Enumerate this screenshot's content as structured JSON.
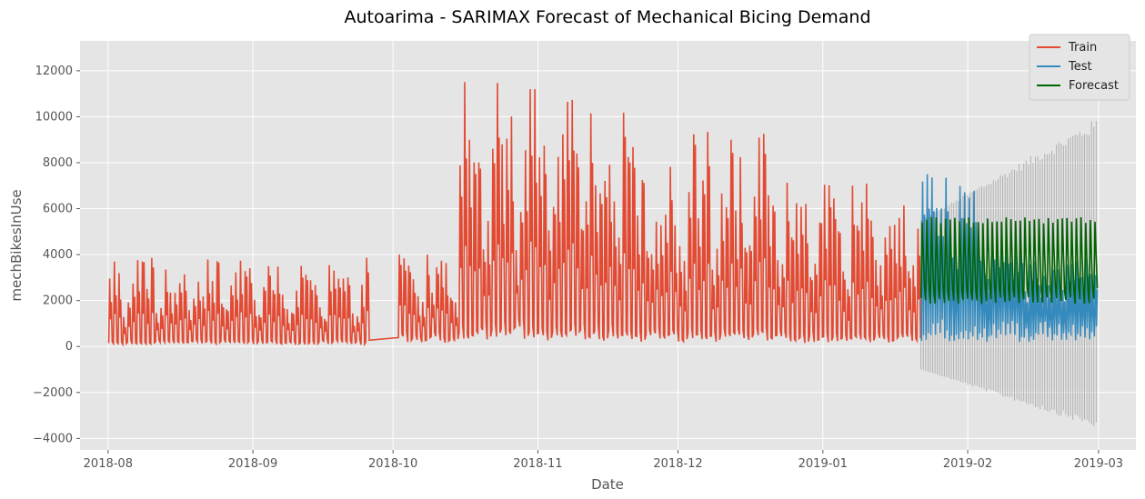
{
  "chart_data": {
    "type": "line",
    "title": "Autoarima - SARIMAX Forecast of Mechanical Bicing Demand",
    "xlabel": "Date",
    "ylabel": "mechBikesInUse",
    "x_tick_labels": [
      "2018-08",
      "2018-09",
      "2018-10",
      "2018-11",
      "2018-12",
      "2019-01",
      "2019-02",
      "2019-03"
    ],
    "x_tick_dates": [
      "2018-08-01",
      "2018-09-01",
      "2018-10-01",
      "2018-11-01",
      "2018-12-01",
      "2019-01-01",
      "2019-02-01",
      "2019-03-01"
    ],
    "xlim": [
      "2018-07-26",
      "2019-03-09"
    ],
    "y_ticks": [
      -4000,
      -2000,
      0,
      2000,
      4000,
      6000,
      8000,
      10000,
      12000
    ],
    "ylim": [
      -4500,
      13300
    ],
    "grid": true,
    "legend_position": "top-right",
    "series": [
      {
        "name": "Train",
        "color": "#e24a33",
        "date_range": [
          "2018-08-01",
          "2019-01-22"
        ],
        "gap": [
          "2018-09-26",
          "2018-10-02"
        ],
        "segments": [
          {
            "from": "2018-08-01",
            "to": "2018-09-26",
            "daily_low": 150,
            "daily_high": 3000,
            "max": 4200
          },
          {
            "from": "2018-10-02",
            "to": "2018-10-15",
            "daily_low": 300,
            "daily_high": 3200,
            "max": 4000
          },
          {
            "from": "2018-10-15",
            "to": "2018-10-30",
            "daily_low": 600,
            "daily_high": 10500,
            "max": 12700
          },
          {
            "from": "2018-10-30",
            "to": "2018-11-20",
            "daily_low": 500,
            "daily_high": 9000,
            "max": 11200
          },
          {
            "from": "2018-11-20",
            "to": "2018-12-25",
            "daily_low": 400,
            "daily_high": 7500,
            "max": 10700
          },
          {
            "from": "2018-12-25",
            "to": "2019-01-22",
            "daily_low": 300,
            "daily_high": 5500,
            "max": 9200
          }
        ]
      },
      {
        "name": "Test",
        "color": "#348abd",
        "date_range": [
          "2019-01-22",
          "2019-03-01"
        ],
        "daily_low": 400,
        "daily_high": 5000,
        "max": 8200
      },
      {
        "name": "Forecast",
        "color": "#006400",
        "date_range": [
          "2019-01-22",
          "2019-03-01"
        ],
        "daily_low": 2000,
        "daily_high": 5500,
        "center": 3000
      },
      {
        "name": "Confidence interval",
        "color": "#aaaaaa",
        "date_range": [
          "2019-01-22",
          "2019-03-01"
        ],
        "lower_min": -3600,
        "upper_max": 10000
      }
    ]
  }
}
